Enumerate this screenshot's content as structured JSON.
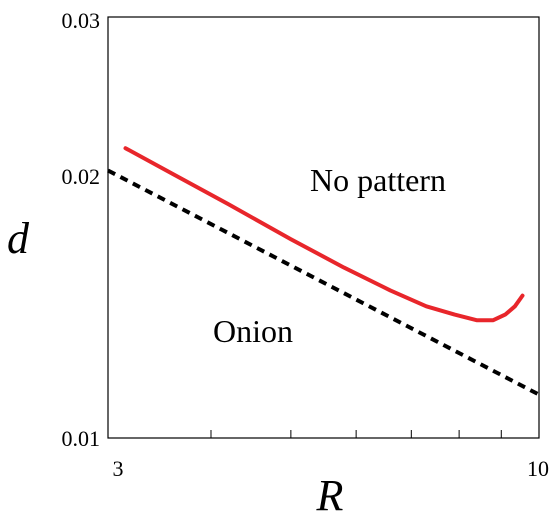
{
  "chart_data": {
    "type": "line",
    "title": "",
    "xlabel": "R",
    "ylabel": "d",
    "xscale": "log",
    "yscale": "log",
    "xlim": [
      3,
      10
    ],
    "ylim": [
      0.01,
      0.03
    ],
    "grid": false,
    "xticks": [
      {
        "value": 3,
        "label": "3"
      },
      {
        "value": 10,
        "label": "10"
      }
    ],
    "yticks": [
      {
        "value": 0.01,
        "label": "0.01"
      },
      {
        "value": 0.02,
        "label": "0.02"
      },
      {
        "value": 0.03,
        "label": "0.03"
      }
    ],
    "x_minor_ticks": [
      4,
      5,
      6,
      7,
      8,
      9
    ],
    "series": [
      {
        "style": "solid",
        "color": "#e8262b",
        "x": [
          3.15,
          3.6,
          4.2,
          5.0,
          5.8,
          6.6,
          7.3,
          7.9,
          8.4,
          8.8,
          9.1,
          9.35,
          9.55
        ],
        "y": [
          0.0213,
          0.0199,
          0.0184,
          0.0168,
          0.0156,
          0.0147,
          0.0141,
          0.0138,
          0.0136,
          0.0136,
          0.0138,
          0.0141,
          0.0145
        ]
      },
      {
        "style": "dashed",
        "color": "#000000",
        "x": [
          3,
          10
        ],
        "y": [
          0.0201,
          0.0112
        ]
      }
    ],
    "annotations": [
      {
        "text": "No pattern",
        "x": 6.8,
        "y": 0.0199
      },
      {
        "text": "Onion",
        "x": 4.6,
        "y": 0.0144
      }
    ]
  }
}
